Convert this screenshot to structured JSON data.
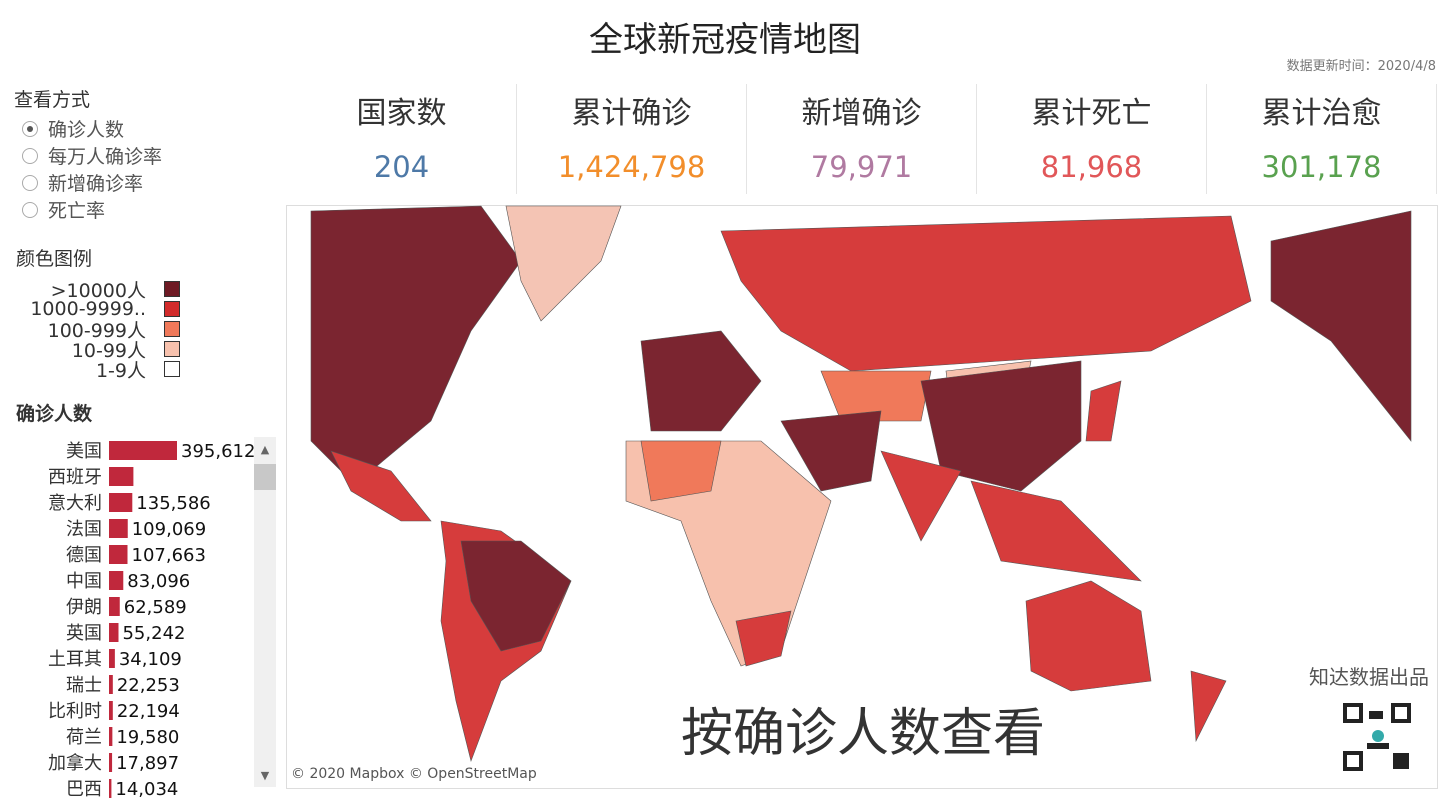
{
  "header": {
    "title": "全球新冠疫情地图",
    "update_time": "数据更新时间：2020/4/8"
  },
  "view_selector": {
    "title": "查看方式",
    "options": [
      "确诊人数",
      "每万人确诊率",
      "新增确诊率",
      "死亡率"
    ],
    "selected": 0
  },
  "color_legend": {
    "title": "颜色图例",
    "items": [
      {
        "label": ">10000人",
        "color": "#6e1a24"
      },
      {
        "label": "1000-9999..",
        "color": "#d22b2b"
      },
      {
        "label": "100-999人",
        "color": "#f0795a"
      },
      {
        "label": "10-99人",
        "color": "#f7c1ad"
      },
      {
        "label": "1-9人",
        "color": "#ffffff"
      }
    ]
  },
  "kpis": [
    {
      "label": "国家数",
      "value": "204",
      "color": "#4e79a7"
    },
    {
      "label": "累计确诊",
      "value": "1,424,798",
      "color": "#f28e2b"
    },
    {
      "label": "新增确诊",
      "value": "79,971",
      "color": "#b07aa1"
    },
    {
      "label": "累计死亡",
      "value": "81,968",
      "color": "#e15759"
    },
    {
      "label": "累计治愈",
      "value": "301,178",
      "color": "#59a14f"
    }
  ],
  "bar_list": {
    "title": "确诊人数",
    "color": "#c0283c",
    "categories": [
      "美国",
      "西班牙",
      "意大利",
      "法国",
      "德国",
      "中国",
      "伊朗",
      "英国",
      "土耳其",
      "瑞士",
      "比利时",
      "荷兰",
      "加拿大",
      "巴西"
    ],
    "values": [
      395612,
      141942,
      135586,
      109069,
      107663,
      83096,
      62589,
      55242,
      34109,
      22253,
      22194,
      19580,
      17897,
      14034
    ],
    "value_labels": [
      "395,612",
      null,
      "135,586",
      "109,069",
      "107,663",
      "83,096",
      "62,589",
      "55,242",
      "34,109",
      "22,253",
      "22,194",
      "19,580",
      "17,897",
      "14,034"
    ]
  },
  "map": {
    "caption": "按确诊人数查看",
    "attribution": "© 2020 Mapbox © OpenStreetMap",
    "credit": "知达数据出品"
  }
}
